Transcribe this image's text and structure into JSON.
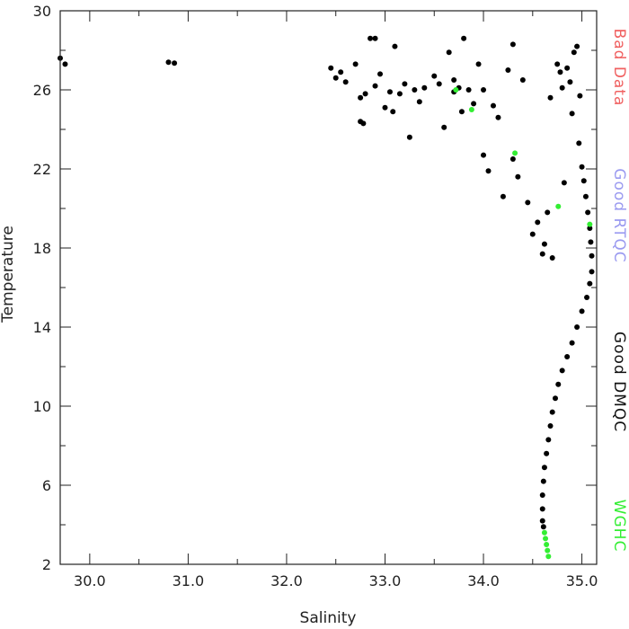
{
  "chart_data": {
    "type": "scatter",
    "xlabel": "Salinity",
    "ylabel": "Temperature",
    "xlim": [
      29.7,
      35.15
    ],
    "ylim": [
      2,
      30
    ],
    "x_ticks": [
      "30.0",
      "31.0",
      "32.0",
      "33.0",
      "34.0",
      "35.0"
    ],
    "x_tick_values": [
      30.0,
      31.0,
      32.0,
      33.0,
      34.0,
      35.0
    ],
    "x_minor_ticks": [
      30.5,
      31.5,
      32.5,
      33.5,
      34.5
    ],
    "y_ticks": [
      "2",
      "6",
      "10",
      "14",
      "18",
      "22",
      "26",
      "30"
    ],
    "y_tick_values": [
      2,
      6,
      10,
      14,
      18,
      22,
      26,
      30
    ],
    "y_minor_ticks": [
      4,
      8,
      12,
      16,
      20,
      24,
      28
    ],
    "grid": false,
    "legend_placement": "right",
    "legend": [
      {
        "label": "Bad Data",
        "color": "#f06060"
      },
      {
        "label": "Good RTQC",
        "color": "#9a9af0"
      },
      {
        "label": "Good DMQC",
        "color": "#111111"
      },
      {
        "label": "WGHC",
        "color": "#33ee33"
      }
    ],
    "series": [
      {
        "name": "Good DMQC",
        "color": "#000000",
        "points": [
          [
            29.7,
            27.6
          ],
          [
            29.75,
            27.3
          ],
          [
            30.8,
            27.4
          ],
          [
            30.86,
            27.35
          ],
          [
            32.45,
            27.1
          ],
          [
            32.5,
            26.6
          ],
          [
            32.55,
            26.9
          ],
          [
            32.6,
            26.4
          ],
          [
            32.7,
            27.3
          ],
          [
            32.75,
            25.6
          ],
          [
            32.75,
            24.4
          ],
          [
            32.78,
            24.3
          ],
          [
            32.8,
            25.8
          ],
          [
            32.85,
            28.6
          ],
          [
            32.9,
            28.6
          ],
          [
            32.9,
            26.2
          ],
          [
            32.95,
            26.8
          ],
          [
            33.0,
            25.1
          ],
          [
            33.05,
            25.9
          ],
          [
            33.08,
            24.9
          ],
          [
            33.1,
            28.2
          ],
          [
            33.15,
            25.8
          ],
          [
            33.2,
            26.3
          ],
          [
            33.25,
            23.6
          ],
          [
            33.3,
            26.0
          ],
          [
            33.35,
            25.4
          ],
          [
            33.4,
            26.1
          ],
          [
            33.5,
            26.7
          ],
          [
            33.55,
            26.3
          ],
          [
            33.6,
            24.1
          ],
          [
            33.65,
            27.9
          ],
          [
            33.7,
            26.5
          ],
          [
            33.7,
            25.9
          ],
          [
            33.75,
            26.1
          ],
          [
            33.78,
            24.9
          ],
          [
            33.8,
            28.6
          ],
          [
            33.85,
            26.0
          ],
          [
            33.9,
            25.3
          ],
          [
            33.95,
            27.3
          ],
          [
            34.0,
            22.7
          ],
          [
            34.0,
            26.0
          ],
          [
            34.05,
            21.9
          ],
          [
            34.1,
            25.2
          ],
          [
            34.15,
            24.6
          ],
          [
            34.2,
            20.6
          ],
          [
            34.25,
            27.0
          ],
          [
            34.3,
            28.3
          ],
          [
            34.3,
            22.5
          ],
          [
            34.35,
            21.6
          ],
          [
            34.4,
            26.5
          ],
          [
            34.45,
            20.3
          ],
          [
            34.5,
            18.7
          ],
          [
            34.55,
            19.3
          ],
          [
            34.6,
            17.7
          ],
          [
            34.62,
            18.2
          ],
          [
            34.65,
            19.8
          ],
          [
            34.68,
            25.6
          ],
          [
            34.7,
            17.5
          ],
          [
            34.75,
            27.3
          ],
          [
            34.78,
            26.9
          ],
          [
            34.8,
            26.1
          ],
          [
            34.82,
            21.3
          ],
          [
            34.85,
            27.1
          ],
          [
            34.88,
            26.4
          ],
          [
            34.9,
            24.8
          ],
          [
            34.92,
            27.9
          ],
          [
            34.95,
            28.2
          ],
          [
            34.97,
            23.3
          ],
          [
            34.98,
            25.7
          ],
          [
            35.0,
            22.1
          ],
          [
            35.02,
            21.4
          ],
          [
            35.04,
            20.6
          ],
          [
            35.06,
            19.8
          ],
          [
            35.08,
            19.0
          ],
          [
            35.09,
            18.3
          ],
          [
            35.1,
            17.6
          ],
          [
            35.1,
            16.8
          ],
          [
            35.08,
            16.2
          ],
          [
            35.05,
            15.5
          ],
          [
            35.0,
            14.8
          ],
          [
            34.95,
            14.0
          ],
          [
            34.9,
            13.2
          ],
          [
            34.85,
            12.5
          ],
          [
            34.8,
            11.8
          ],
          [
            34.76,
            11.1
          ],
          [
            34.73,
            10.4
          ],
          [
            34.7,
            9.7
          ],
          [
            34.68,
            9.0
          ],
          [
            34.66,
            8.3
          ],
          [
            34.64,
            7.6
          ],
          [
            34.62,
            6.9
          ],
          [
            34.61,
            6.2
          ],
          [
            34.6,
            5.5
          ],
          [
            34.6,
            4.8
          ],
          [
            34.6,
            4.2
          ],
          [
            34.61,
            3.9
          ]
        ]
      },
      {
        "name": "WGHC",
        "color": "#33ee33",
        "points": [
          [
            34.62,
            3.6
          ],
          [
            34.63,
            3.3
          ],
          [
            34.64,
            3.0
          ],
          [
            34.65,
            2.7
          ],
          [
            34.66,
            2.4
          ],
          [
            33.72,
            26.0
          ],
          [
            33.88,
            25.0
          ],
          [
            34.32,
            22.8
          ],
          [
            34.76,
            20.1
          ],
          [
            35.08,
            19.2
          ]
        ]
      }
    ]
  }
}
